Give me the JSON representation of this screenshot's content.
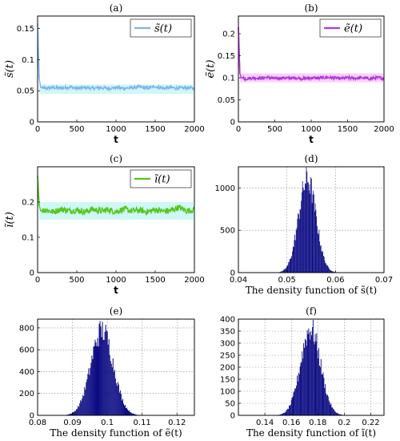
{
  "chart_data": [
    {
      "panel": "(a)",
      "type": "line",
      "title": "(a)",
      "xlabel": "t",
      "ylabel": "s̃(t)",
      "legend": "s̃(t)",
      "legend_position": "top-right",
      "xlim": [
        0,
        2000
      ],
      "ylim": [
        0,
        0.17
      ],
      "xticks": [
        "0",
        "500",
        "1000",
        "1500",
        "2000"
      ],
      "yticks": [
        "0",
        "0.05",
        "0.1",
        "0.15"
      ],
      "ytick_values": [
        0,
        0.05,
        0.1,
        0.15
      ],
      "grid": false,
      "series": [
        {
          "name": "s̃(t)",
          "color": "#7fb3ea",
          "band_color": "#c4f5f5",
          "start_value": 0.158,
          "x": [
            0,
            20,
            40,
            100,
            200,
            300,
            400,
            500,
            600,
            700,
            800,
            900,
            1000,
            1100,
            1200,
            1300,
            1400,
            1500,
            1600,
            1700,
            1800,
            1900,
            2000
          ],
          "y": [
            0.158,
            0.07,
            0.055,
            0.054,
            0.055,
            0.054,
            0.056,
            0.054,
            0.055,
            0.054,
            0.055,
            0.054,
            0.055,
            0.054,
            0.055,
            0.056,
            0.054,
            0.057,
            0.054,
            0.055,
            0.054,
            0.055,
            0.054
          ],
          "band_lower": 0.045,
          "band_upper": 0.06
        }
      ]
    },
    {
      "panel": "(b)",
      "type": "line",
      "title": "(b)",
      "xlabel": "t",
      "ylabel": "ẽ(t)",
      "legend": "ẽ(t)",
      "legend_position": "top-right",
      "xlim": [
        0,
        2000
      ],
      "ylim": [
        0,
        0.24
      ],
      "xticks": [
        "0",
        "500",
        "1000",
        "1500",
        "2000"
      ],
      "yticks": [
        "0",
        "0.05",
        "0.1",
        "0.15",
        "0.2"
      ],
      "ytick_values": [
        0,
        0.05,
        0.1,
        0.15,
        0.2
      ],
      "grid": false,
      "series": [
        {
          "name": "ẽ(t)",
          "color": "#b433e0",
          "band_color": "#f4c8f8",
          "start_value": 0.215,
          "x": [
            0,
            20,
            40,
            100,
            200,
            300,
            400,
            500,
            600,
            700,
            800,
            900,
            1000,
            1100,
            1200,
            1300,
            1400,
            1500,
            1600,
            1700,
            1800,
            1900,
            2000
          ],
          "y": [
            0.215,
            0.11,
            0.1,
            0.098,
            0.1,
            0.099,
            0.101,
            0.098,
            0.1,
            0.099,
            0.1,
            0.098,
            0.1,
            0.099,
            0.101,
            0.1,
            0.098,
            0.1,
            0.099,
            0.1,
            0.098,
            0.1,
            0.099
          ],
          "band_lower": 0.09,
          "band_upper": 0.11
        }
      ]
    },
    {
      "panel": "(c)",
      "type": "line",
      "title": "(c)",
      "xlabel": "t",
      "ylabel": "ĩ(t)",
      "legend": "ĩ(t)",
      "legend_position": "top-right",
      "xlim": [
        0,
        2000
      ],
      "ylim": [
        0,
        0.3
      ],
      "xticks": [
        "0",
        "500",
        "1000",
        "1500",
        "2000"
      ],
      "yticks": [
        "0",
        "0.1",
        "0.2"
      ],
      "ytick_values": [
        0,
        0.1,
        0.2
      ],
      "grid": false,
      "series": [
        {
          "name": "ĩ(t)",
          "color": "#55c61a",
          "band_color": "#c4f5f5",
          "start_value": 0.275,
          "x": [
            0,
            20,
            40,
            100,
            200,
            300,
            400,
            500,
            600,
            700,
            800,
            900,
            1000,
            1100,
            1200,
            1300,
            1400,
            1500,
            1600,
            1700,
            1800,
            1900,
            2000
          ],
          "y": [
            0.275,
            0.19,
            0.175,
            0.178,
            0.172,
            0.18,
            0.175,
            0.177,
            0.172,
            0.18,
            0.175,
            0.178,
            0.173,
            0.18,
            0.175,
            0.177,
            0.172,
            0.179,
            0.174,
            0.176,
            0.185,
            0.175,
            0.178
          ],
          "band_lower": 0.15,
          "band_upper": 0.2
        }
      ]
    },
    {
      "panel": "(d)",
      "type": "bar",
      "title": "(d)",
      "xlabel": "The density function of s̃(t)",
      "ylabel": "",
      "xlim": [
        0.04,
        0.07
      ],
      "ylim": [
        0,
        1250
      ],
      "xticks": [
        "0.04",
        "0.05",
        "0.06",
        "0.07"
      ],
      "xtick_values": [
        0.04,
        0.05,
        0.06,
        0.07
      ],
      "yticks": [
        "0",
        "500",
        "1000"
      ],
      "ytick_values": [
        0,
        500,
        1000
      ],
      "grid": true,
      "color": "#0a0a82",
      "center": 0.0542,
      "spread": 0.0018,
      "peak": 1130,
      "bins": 110
    },
    {
      "panel": "(e)",
      "type": "bar",
      "title": "(e)",
      "xlabel": "The density function of ẽ(t)",
      "ylabel": "",
      "xlim": [
        0.08,
        0.125
      ],
      "ylim": [
        0,
        880
      ],
      "xticks": [
        "0.08",
        "0.09",
        "0.1",
        "0.11",
        "0.12"
      ],
      "xtick_values": [
        0.08,
        0.09,
        0.1,
        0.11,
        0.12
      ],
      "yticks": [
        "0",
        "200",
        "400",
        "600",
        "800"
      ],
      "ytick_values": [
        0,
        200,
        400,
        600,
        800
      ],
      "grid": true,
      "color": "#0a0a82",
      "center": 0.0985,
      "spread": 0.0032,
      "peak": 800,
      "bins": 110
    },
    {
      "panel": "(f)",
      "type": "bar",
      "title": "(f)",
      "xlabel": "The density function of ĩ(t)",
      "ylabel": "",
      "xlim": [
        0.12,
        0.23
      ],
      "ylim": [
        0,
        400
      ],
      "xticks": [
        "0.14",
        "0.16",
        "0.18",
        "0.2",
        "0.22"
      ],
      "xtick_values": [
        0.14,
        0.16,
        0.18,
        0.2,
        0.22
      ],
      "yticks": [
        "0",
        "50",
        "100",
        "150",
        "200",
        "250",
        "300",
        "350",
        "400"
      ],
      "ytick_values": [
        0,
        50,
        100,
        150,
        200,
        250,
        300,
        350,
        400
      ],
      "grid": true,
      "color": "#0a0a82",
      "center": 0.1745,
      "spread": 0.0075,
      "peak": 370,
      "bins": 110
    }
  ]
}
